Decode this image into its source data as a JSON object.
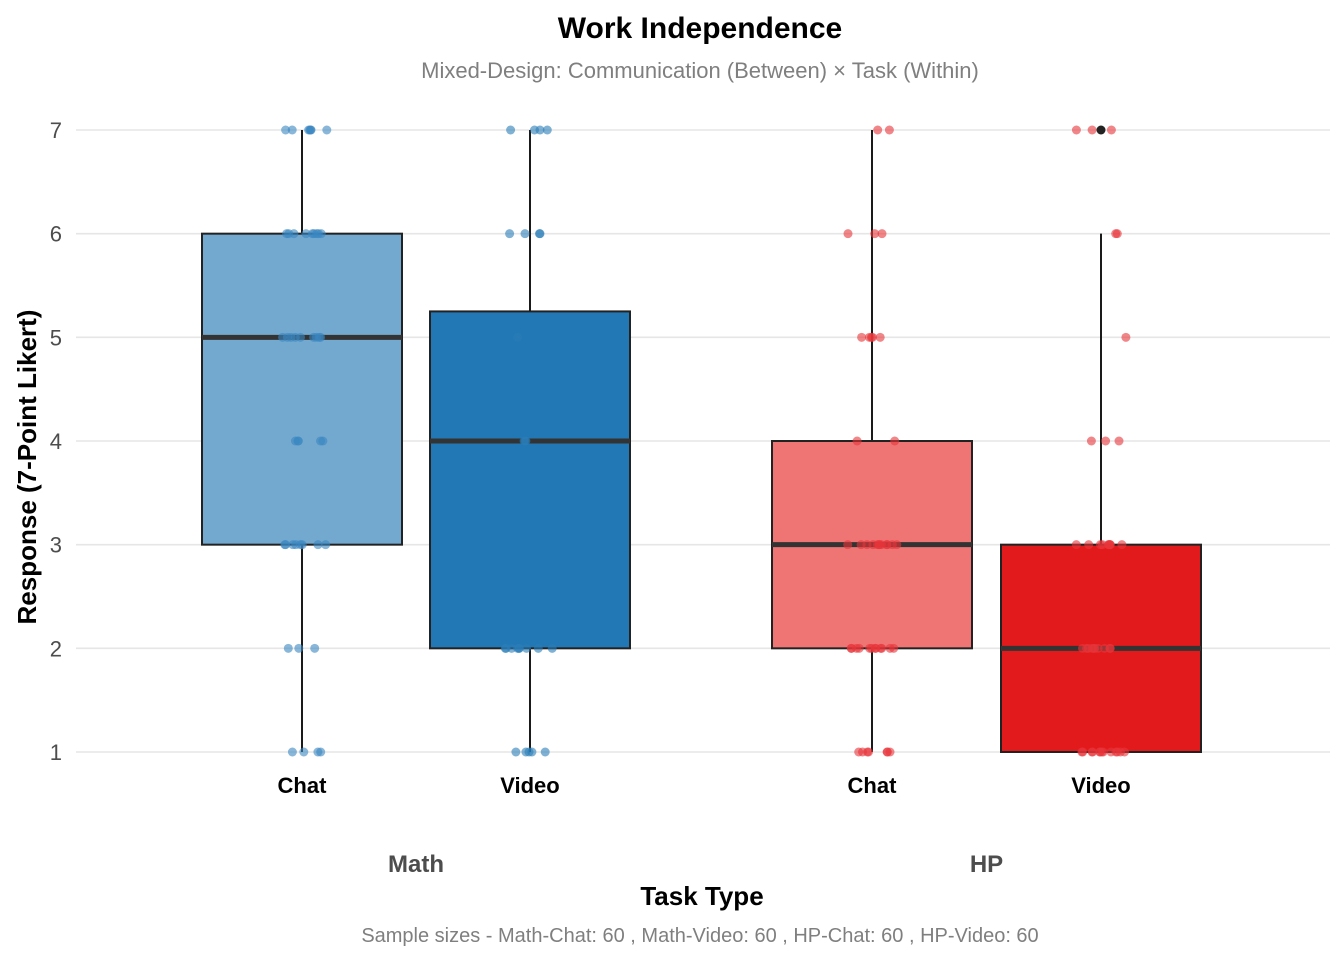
{
  "chart_data": {
    "type": "box",
    "title": "Work Independence",
    "subtitle": "Mixed-Design: Communication (Between) × Task (Within)",
    "xlabel": "Task Type",
    "ylabel": "Response (7-Point Likert)",
    "ylim": [
      1,
      7
    ],
    "yticks": [
      1,
      2,
      3,
      4,
      5,
      6,
      7
    ],
    "grid": "horizontal",
    "caption": "Sample sizes - Math-Chat: 60 , Math-Video: 60 , HP-Chat: 60 , HP-Video: 60",
    "groups": [
      {
        "label": "Math",
        "boxes": [
          {
            "label": "Chat",
            "color": "#74A9CF",
            "point_color": "#3A87C2",
            "whisker_low": 1,
            "q1": 3,
            "median": 5,
            "q3": 6,
            "whisker_high": 7,
            "points": [
              7,
              7,
              7,
              7,
              7,
              7,
              7,
              6,
              6,
              6,
              6,
              6,
              6,
              6,
              6,
              6,
              5,
              5,
              5,
              5,
              5,
              5,
              5,
              5,
              5,
              4,
              4,
              4,
              4,
              4,
              3,
              3,
              3,
              3,
              3,
              3,
              3,
              3,
              2,
              2,
              2,
              1,
              1,
              1,
              1
            ]
          },
          {
            "label": "Video",
            "color": "#2178B4",
            "point_color": "#2A7DB8",
            "whisker_low": 1,
            "q1": 2,
            "median": 4,
            "q3": 5.25,
            "whisker_high": 7,
            "points": [
              7,
              7,
              7,
              7,
              6,
              6,
              6,
              6,
              5,
              4,
              4,
              4,
              2,
              2,
              2,
              2,
              2,
              2,
              2,
              2,
              2,
              1,
              1,
              1,
              1,
              1
            ]
          }
        ]
      },
      {
        "label": "HP",
        "boxes": [
          {
            "label": "Chat",
            "color": "#EF7575",
            "point_color": "#E8363A",
            "whisker_low": 1,
            "q1": 2,
            "median": 3,
            "q3": 4,
            "whisker_high": 7,
            "points": [
              7,
              7,
              6,
              6,
              6,
              5,
              5,
              5,
              5,
              5,
              4,
              4,
              3,
              3,
              3,
              3,
              3,
              3,
              3,
              3,
              3,
              3,
              3,
              3,
              2,
              2,
              2,
              2,
              2,
              2,
              2,
              2,
              2,
              2,
              2,
              2,
              1,
              1,
              1,
              1,
              1,
              1,
              1
            ]
          },
          {
            "label": "Video",
            "color": "#E31A1C",
            "point_color": "#E8363A",
            "whisker_low": 1,
            "q1": 1,
            "median": 2,
            "q3": 3,
            "whisker_high": 6,
            "outliers": [
              7
            ],
            "points": [
              7,
              7,
              7,
              6,
              6,
              5,
              4,
              4,
              4,
              3,
              3,
              3,
              3,
              3,
              3,
              3,
              3,
              3,
              3,
              2,
              2,
              2,
              2,
              2,
              2,
              2,
              2,
              2,
              2,
              1,
              1,
              1,
              1,
              1,
              1,
              1,
              1,
              1,
              1,
              1,
              1,
              1
            ]
          }
        ]
      }
    ]
  }
}
